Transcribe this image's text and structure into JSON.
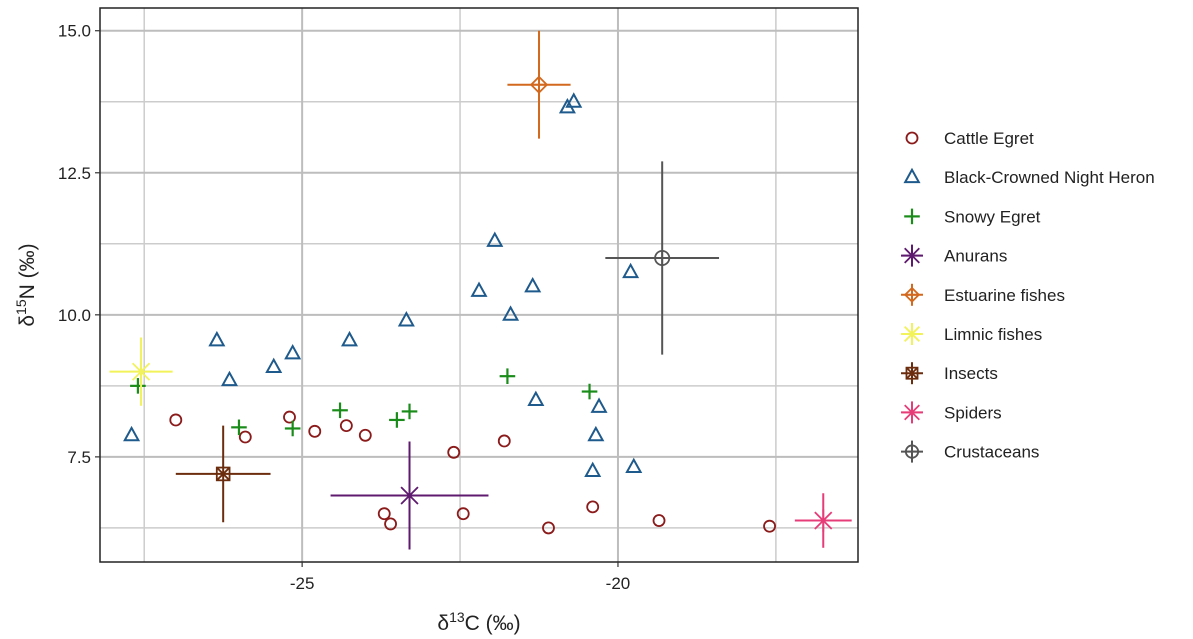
{
  "chart_data": {
    "type": "scatter",
    "title": "",
    "xlabel": {
      "base": "δ",
      "sup": "13",
      "tail": "C (‰)"
    },
    "ylabel": {
      "base": "δ",
      "sup": "15",
      "tail": "N (‰)"
    },
    "xlim": [
      -28.2,
      -16.2
    ],
    "ylim": [
      5.65,
      15.4
    ],
    "xticks": [
      {
        "value": -25,
        "label": "-25"
      },
      {
        "value": -20,
        "label": "-20"
      }
    ],
    "yticks": [
      {
        "value": 7.5,
        "label": "7.5"
      },
      {
        "value": 10.0,
        "label": "10.0"
      },
      {
        "value": 12.5,
        "label": "12.5"
      },
      {
        "value": 15.0,
        "label": "15.0"
      }
    ],
    "grid": true,
    "legend_position": "right",
    "series": [
      {
        "name": "Cattle Egret",
        "marker": "circle",
        "color": "#8B1A1A",
        "points": [
          [
            -27.0,
            8.15
          ],
          [
            -25.9,
            7.85
          ],
          [
            -25.2,
            8.2
          ],
          [
            -24.8,
            7.95
          ],
          [
            -24.3,
            8.05
          ],
          [
            -24.0,
            7.88
          ],
          [
            -23.7,
            6.5
          ],
          [
            -23.6,
            6.32
          ],
          [
            -22.6,
            7.58
          ],
          [
            -22.45,
            6.5
          ],
          [
            -21.8,
            7.78
          ],
          [
            -21.1,
            6.25
          ],
          [
            -20.4,
            6.62
          ],
          [
            -19.35,
            6.38
          ],
          [
            -17.6,
            6.28
          ]
        ]
      },
      {
        "name": "Black-Crowned Night Heron",
        "marker": "triangle",
        "color": "#1F5A8C",
        "points": [
          [
            -27.7,
            7.88
          ],
          [
            -26.35,
            9.55
          ],
          [
            -26.15,
            8.85
          ],
          [
            -25.45,
            9.08
          ],
          [
            -25.15,
            9.32
          ],
          [
            -24.25,
            9.55
          ],
          [
            -23.35,
            9.9
          ],
          [
            -22.2,
            10.42
          ],
          [
            -21.95,
            11.3
          ],
          [
            -21.7,
            10.0
          ],
          [
            -21.35,
            10.5
          ],
          [
            -21.3,
            8.5
          ],
          [
            -20.8,
            13.65
          ],
          [
            -20.7,
            13.75
          ],
          [
            -20.4,
            7.25
          ],
          [
            -20.35,
            7.88
          ],
          [
            -20.3,
            8.38
          ],
          [
            -19.8,
            10.75
          ],
          [
            -19.75,
            7.32
          ]
        ]
      },
      {
        "name": "Snowy Egret",
        "marker": "plus",
        "color": "#1A8C1A",
        "points": [
          [
            -27.6,
            8.75
          ],
          [
            -26.0,
            8.02
          ],
          [
            -25.15,
            8.0
          ],
          [
            -24.4,
            8.32
          ],
          [
            -23.5,
            8.15
          ],
          [
            -23.3,
            8.3
          ],
          [
            -21.75,
            8.92
          ],
          [
            -20.45,
            8.65
          ]
        ]
      },
      {
        "name": "Anurans",
        "marker": "star",
        "color": "#5E1A6E",
        "points": [
          [
            -23.3,
            6.82
          ]
        ],
        "xerr": [
          1.25
        ],
        "yerr": [
          0.95
        ]
      },
      {
        "name": "Estuarine fishes",
        "marker": "diamond-plus",
        "color": "#D2691E",
        "points": [
          [
            -21.25,
            14.05
          ]
        ],
        "xerr": [
          0.5
        ],
        "yerr": [
          0.95
        ]
      },
      {
        "name": "Limnic fishes",
        "marker": "star",
        "color": "#F2F25A",
        "points": [
          [
            -27.55,
            9.0
          ]
        ],
        "xerr": [
          0.5
        ],
        "yerr": [
          0.6
        ]
      },
      {
        "name": "Insects",
        "marker": "square-x",
        "color": "#6B2D0E",
        "points": [
          [
            -26.25,
            7.2
          ]
        ],
        "xerr": [
          0.75
        ],
        "yerr": [
          0.85
        ]
      },
      {
        "name": "Spiders",
        "marker": "star",
        "color": "#E63C78",
        "points": [
          [
            -16.75,
            6.38
          ]
        ],
        "xerr": [
          0.45
        ],
        "yerr": [
          0.48
        ]
      },
      {
        "name": "Crustaceans",
        "marker": "circle-plus",
        "color": "#555555",
        "points": [
          [
            -19.3,
            11.0
          ]
        ],
        "xerr": [
          0.9
        ],
        "yerr": [
          1.7
        ]
      }
    ]
  }
}
